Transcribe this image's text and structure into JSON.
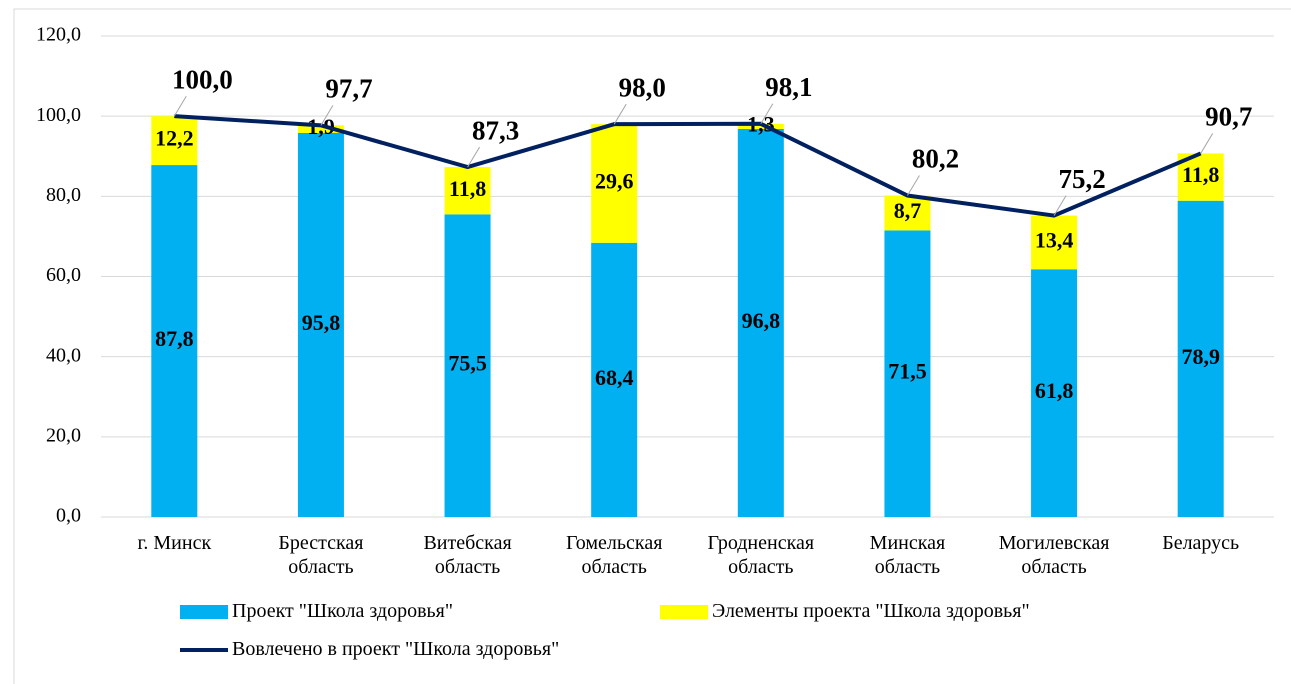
{
  "chart_data": {
    "type": "bar",
    "categories": [
      "г. Минск",
      "Брестская область",
      "Витебская область",
      "Гомельская область",
      "Гродненская область",
      "Минская область",
      "Могилевская область",
      "Беларусь"
    ],
    "series": [
      {
        "name": "Проект \"Школа здоровья\"",
        "color": "#00b0f0",
        "values": [
          87.8,
          95.8,
          75.5,
          68.4,
          96.8,
          71.5,
          61.8,
          78.9
        ],
        "value_labels": [
          "87,8",
          "95,8",
          "75,5",
          "68,4",
          "96,8",
          "71,5",
          "61,8",
          "78,9"
        ]
      },
      {
        "name": "Элементы проекта \"Школа здоровья\"",
        "color": "#ffff00",
        "values": [
          12.2,
          1.9,
          11.8,
          29.6,
          1.3,
          8.7,
          13.4,
          11.8
        ],
        "value_labels": [
          "12,2",
          "1,9",
          "11,8",
          "29,6",
          "1,3",
          "8,7",
          "13,4",
          "11,8"
        ]
      },
      {
        "name": "Вовлечено в проект \"Школа здоровья\"",
        "type": "line",
        "color": "#002060",
        "values": [
          100.0,
          97.7,
          87.3,
          98.0,
          98.1,
          80.2,
          75.2,
          90.7
        ],
        "value_labels": [
          "100,0",
          "97,7",
          "87,3",
          "98,0",
          "98,1",
          "80,2",
          "75,2",
          "90,7"
        ]
      }
    ],
    "ylim": [
      0,
      120
    ],
    "yticks": [
      {
        "value": 0,
        "label": "0,0"
      },
      {
        "value": 20,
        "label": "20,0"
      },
      {
        "value": 40,
        "label": "40,0"
      },
      {
        "value": 60,
        "label": "60,0"
      },
      {
        "value": 80,
        "label": "80,0"
      },
      {
        "value": 100,
        "label": "100,0"
      },
      {
        "value": 120,
        "label": "120,0"
      }
    ],
    "grid": true
  }
}
